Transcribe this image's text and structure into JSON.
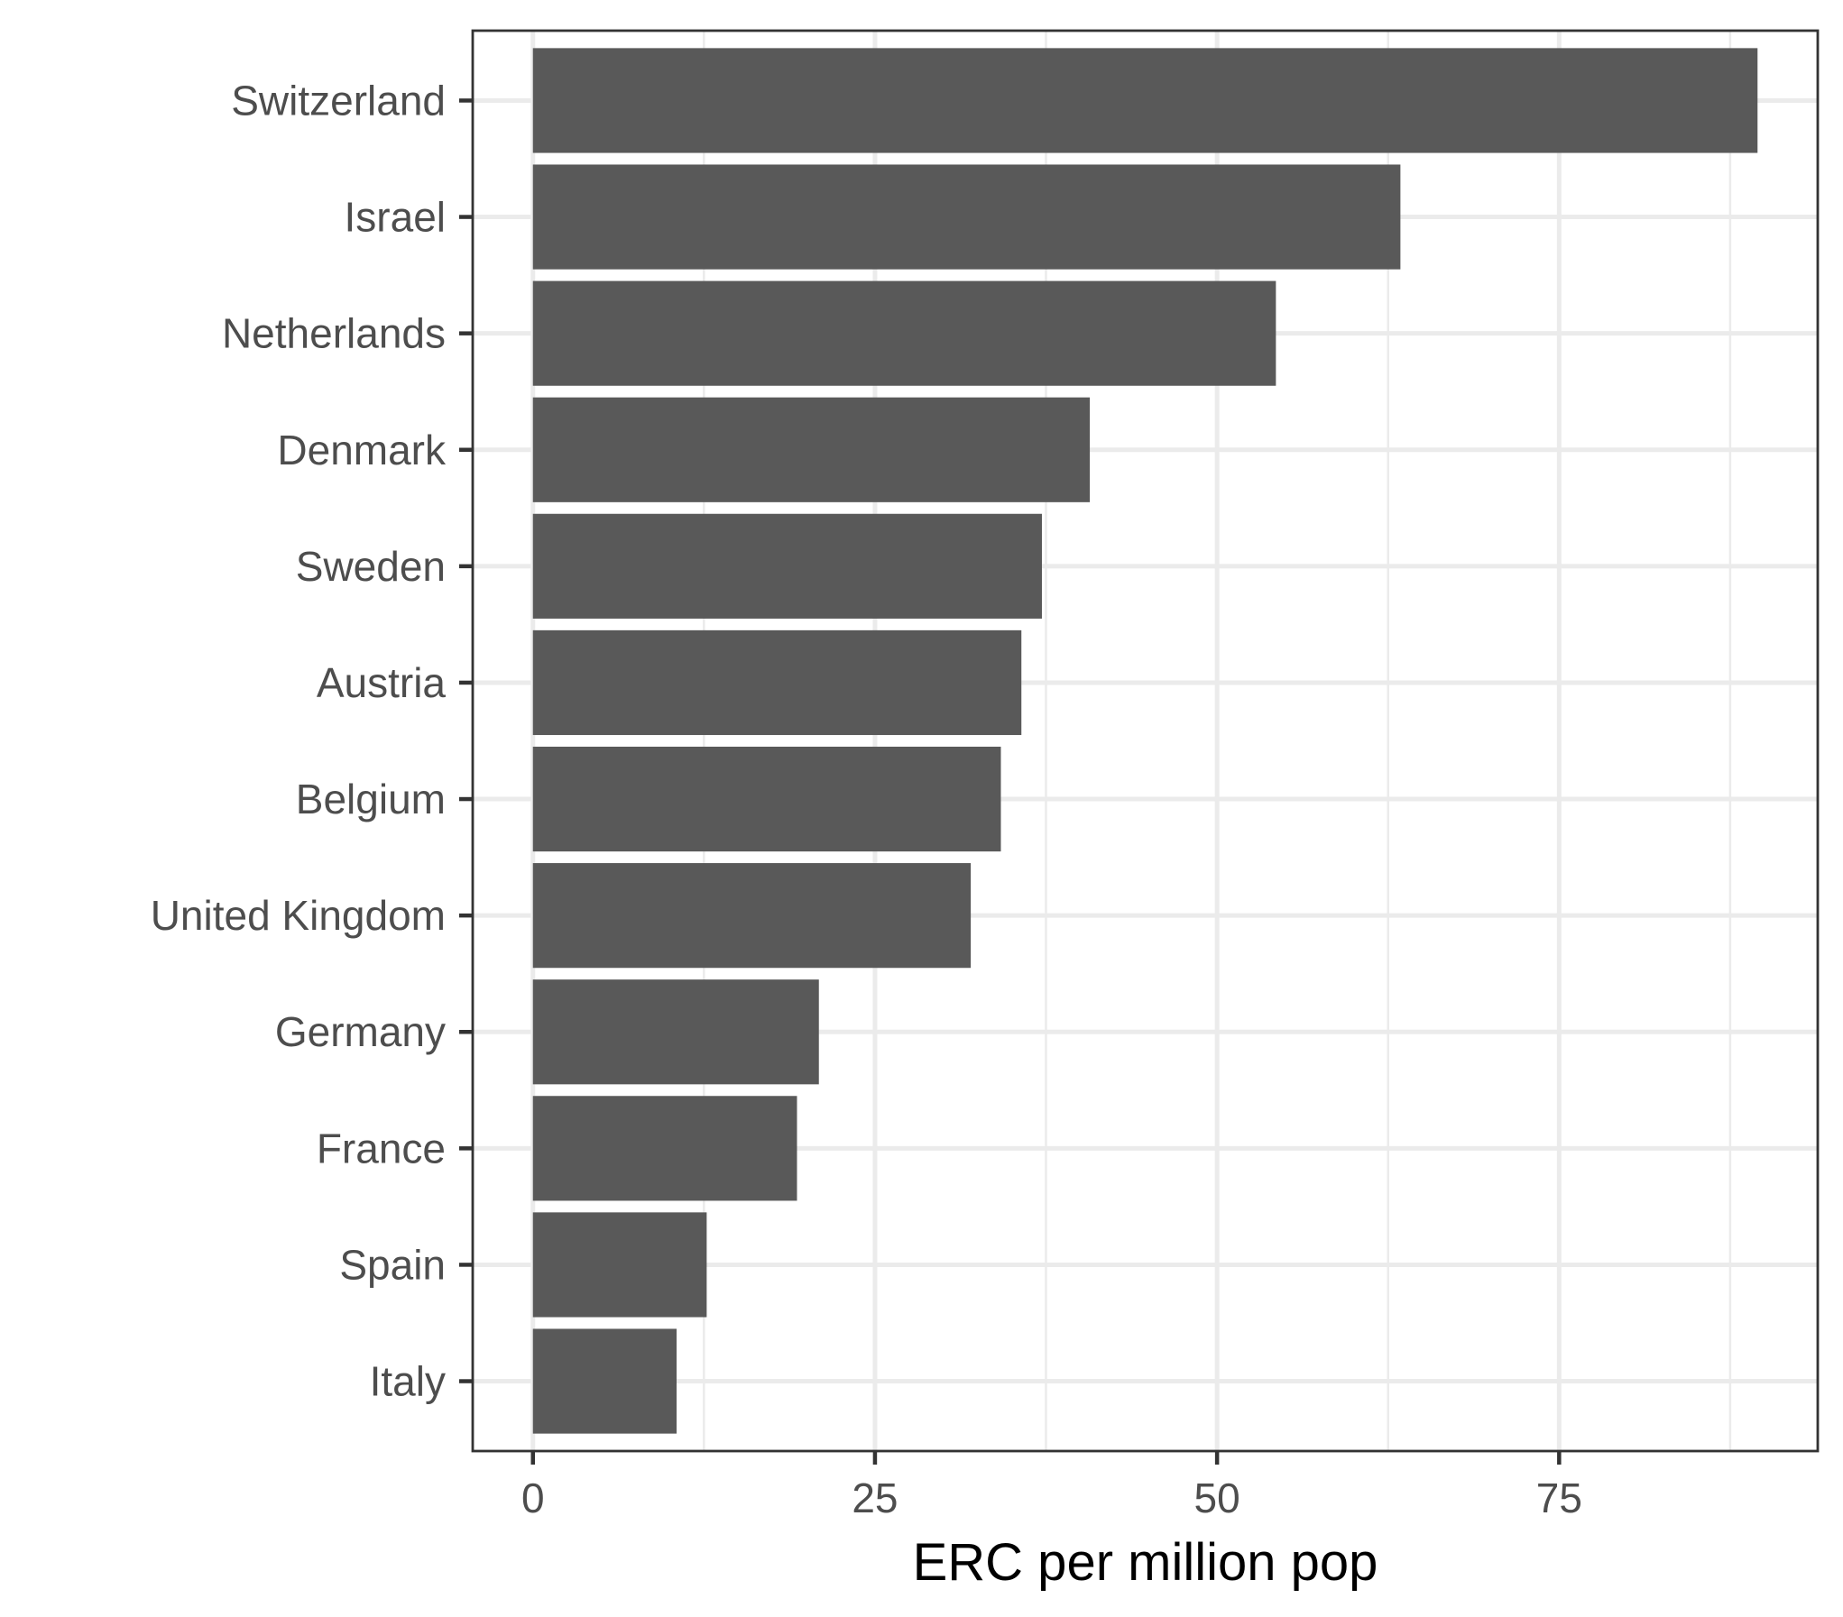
{
  "chart_data": {
    "type": "bar",
    "orientation": "horizontal",
    "categories": [
      "Switzerland",
      "Israel",
      "Netherlands",
      "Denmark",
      "Sweden",
      "Austria",
      "Belgium",
      "United Kingdom",
      "Germany",
      "France",
      "Spain",
      "Italy"
    ],
    "values": [
      89.5,
      63.4,
      54.3,
      40.7,
      37.2,
      35.7,
      34.2,
      32.0,
      20.9,
      19.3,
      12.7,
      10.5
    ],
    "title": "",
    "xlabel": "ERC per million pop",
    "ylabel": "",
    "xlim": [
      -4.4,
      93.9
    ],
    "xticks": [
      0,
      25,
      50,
      75
    ],
    "xtick_labels": [
      "0",
      "25",
      "50",
      "75"
    ],
    "grid": true,
    "legend": "none",
    "bar_color": "#595959",
    "grid_color": "#ebebeb",
    "panel_border_color": "#333333"
  }
}
